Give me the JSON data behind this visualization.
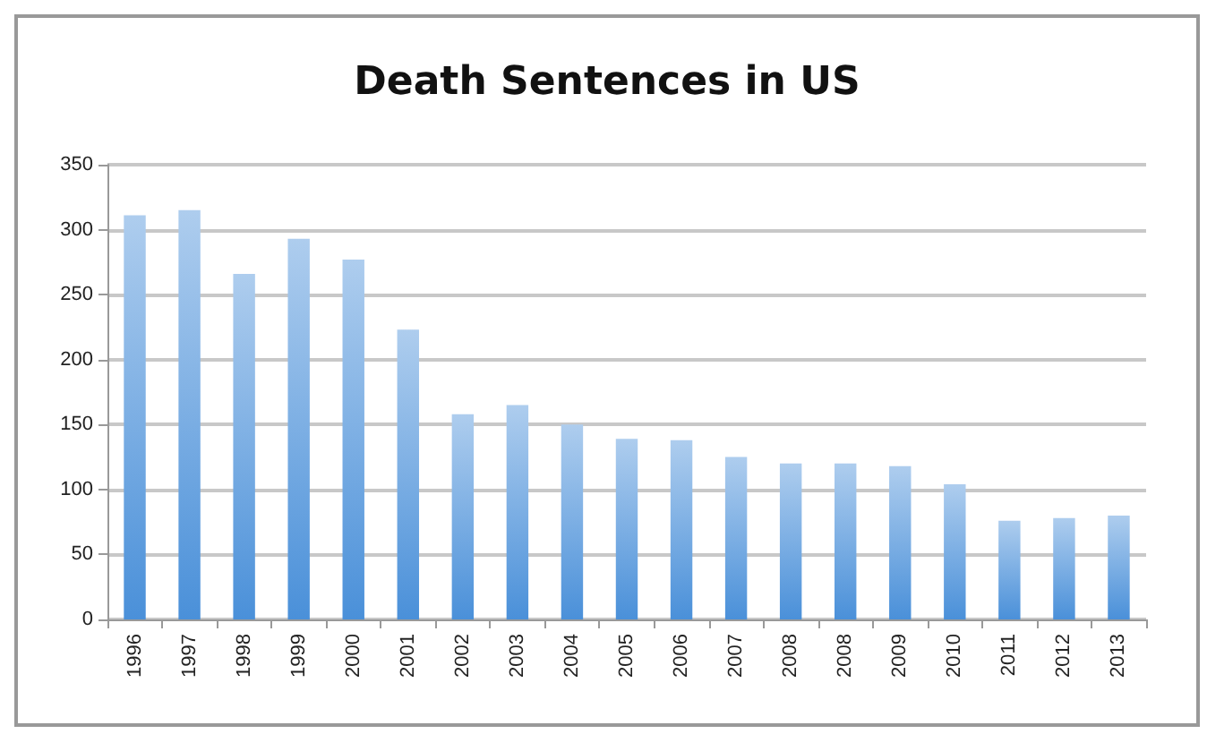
{
  "chart_data": {
    "type": "bar",
    "title": "Death Sentences in US",
    "categories": [
      "1996",
      "1997",
      "1998",
      "1999",
      "2000",
      "2001",
      "2002",
      "2003",
      "2004",
      "2005",
      "2006",
      "2007",
      "2008",
      "2008",
      "2009",
      "2010",
      "2011",
      "2012",
      "2013"
    ],
    "values": [
      311,
      315,
      266,
      293,
      277,
      223,
      158,
      165,
      150,
      139,
      138,
      125,
      120,
      120,
      118,
      104,
      76,
      78,
      80
    ],
    "color": "#4a90d9",
    "ylim": [
      0,
      350
    ],
    "yticks": [
      0,
      50,
      100,
      150,
      200,
      250,
      300,
      350
    ],
    "grid": "y"
  }
}
